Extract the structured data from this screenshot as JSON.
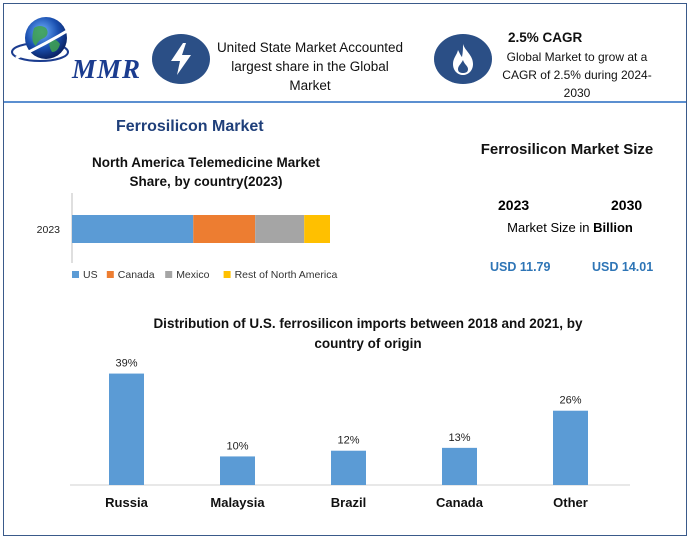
{
  "header": {
    "logo_text": "MMR",
    "info1": "United State Market Accounted largest share in the Global Market",
    "cagr_title": "2.5% CAGR",
    "cagr_text": "Global Market to grow at a CAGR of 2.5% during 2024-2030",
    "icons": [
      "lightning-bolt-icon",
      "flame-icon",
      "globe-icon"
    ]
  },
  "market_title": "Ferrosilicon Market",
  "market_size": {
    "title": "Ferrosilicon Market Size",
    "year_start": "2023",
    "year_end": "2030",
    "subtitle_prefix": "Market Size in ",
    "subtitle_unit": "Billion",
    "value_start": "USD 11.79",
    "value_end": "USD 14.01"
  },
  "colors": {
    "accent": "#2b4f86",
    "value_blue": "#2e75b6",
    "title_blue": "#1f3f7a"
  },
  "chart_data": [
    {
      "type": "bar",
      "orientation": "horizontal-stacked",
      "title": "North America Telemedicine Market Share, by country(2023)",
      "categories": [
        "2023"
      ],
      "series": [
        {
          "name": "US",
          "values": [
            47
          ],
          "color": "#5b9bd5"
        },
        {
          "name": "Canada",
          "values": [
            24
          ],
          "color": "#ed7d31"
        },
        {
          "name": "Mexico",
          "values": [
            19
          ],
          "color": "#a5a5a5"
        },
        {
          "name": "Rest of North America",
          "values": [
            10
          ],
          "color": "#ffc000"
        }
      ],
      "legend": "bottom",
      "grid": false
    },
    {
      "type": "bar",
      "title": "Distribution of U.S. ferrosilicon imports between 2018 and 2021, by country of origin",
      "categories": [
        "Russia",
        "Malaysia",
        "Brazil",
        "Canada",
        "Other"
      ],
      "values": [
        39,
        10,
        12,
        13,
        26
      ],
      "data_labels": [
        "39%",
        "10%",
        "12%",
        "13%",
        "26%"
      ],
      "ylim": [
        0,
        42
      ],
      "color": "#5b9bd5",
      "grid": false
    }
  ]
}
